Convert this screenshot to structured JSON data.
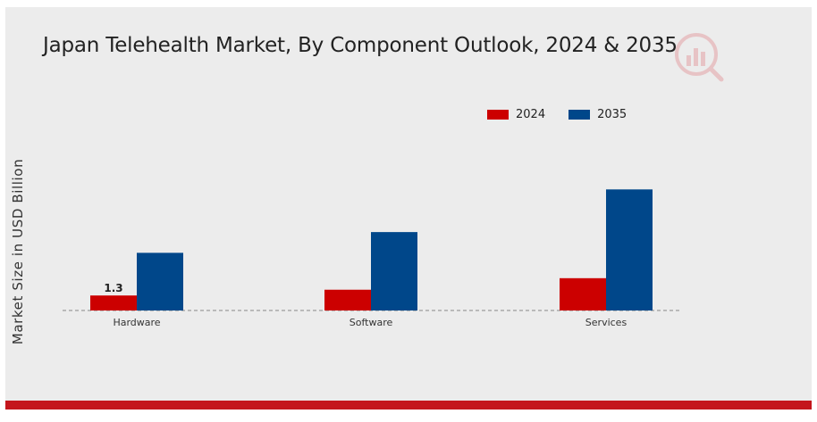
{
  "colors": {
    "2024": "#cc0000",
    "2035": "#00478a",
    "accent": "#c4161c"
  },
  "chart_data": {
    "type": "bar",
    "title": "Japan Telehealth Market, By Component Outlook, 2024 & 2035",
    "xlabel": "",
    "ylabel": "Market Size in USD Billion",
    "categories": [
      "Hardware",
      "Software",
      "Services"
    ],
    "series": [
      {
        "name": "2024",
        "values": [
          1.3,
          1.8,
          2.8
        ]
      },
      {
        "name": "2035",
        "values": [
          5.0,
          6.8,
          10.5
        ]
      }
    ],
    "data_labels": [
      {
        "series": "2024",
        "category": "Hardware",
        "text": "1.3"
      }
    ],
    "ylim": [
      0,
      13
    ],
    "grid": false,
    "legend": "top-right"
  }
}
